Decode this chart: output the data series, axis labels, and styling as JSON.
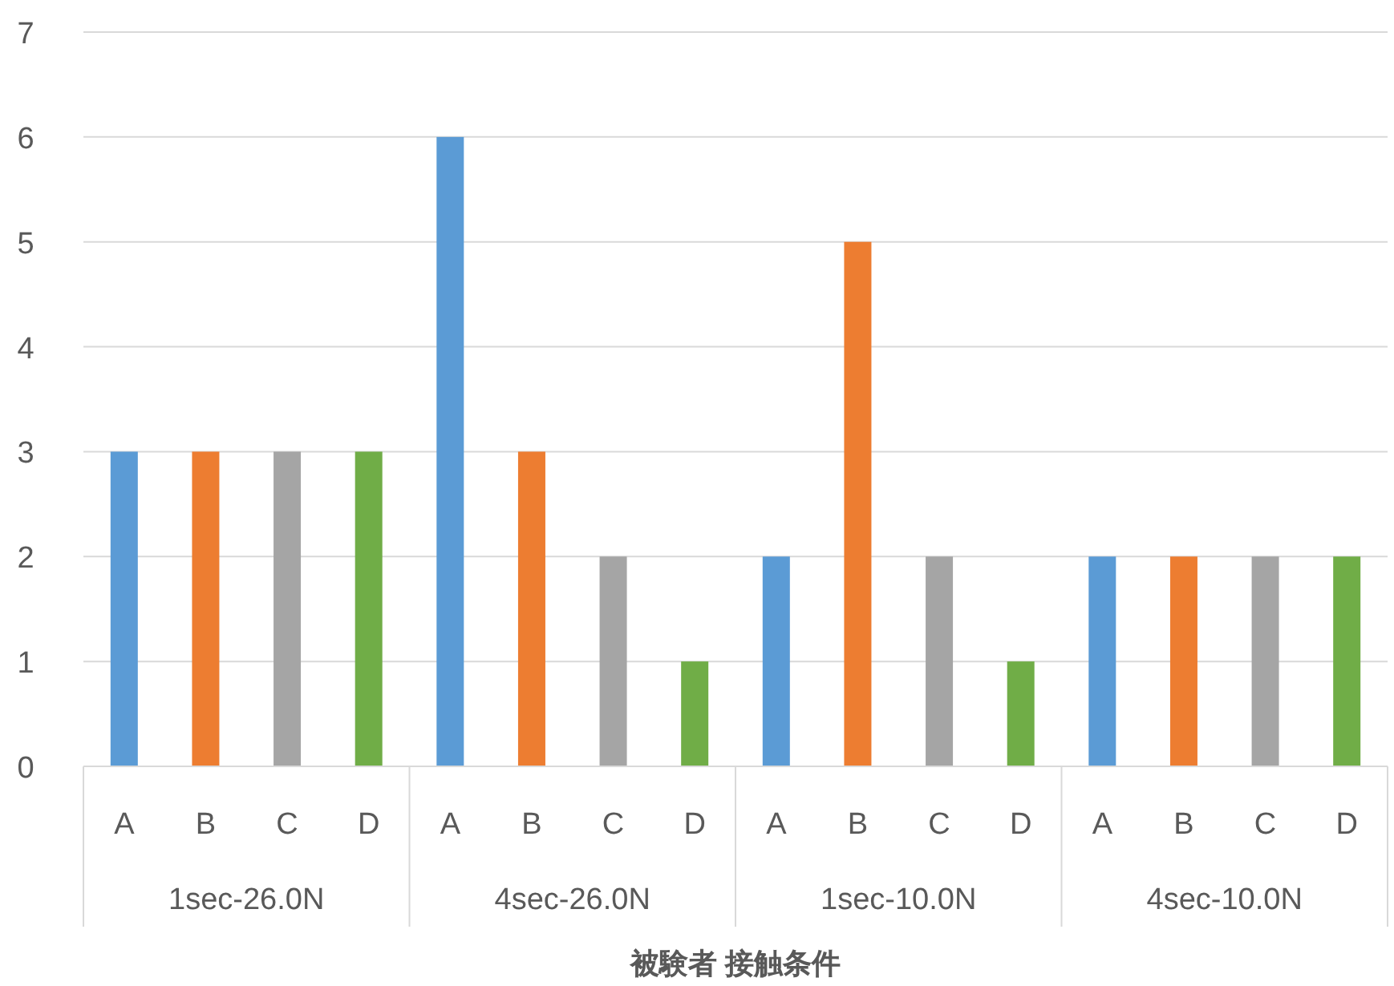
{
  "chart_data": {
    "type": "bar",
    "xlabel": "被験者 接触条件",
    "categories": [
      "A",
      "B",
      "C",
      "D",
      "A",
      "B",
      "C",
      "D",
      "A",
      "B",
      "C",
      "D",
      "A",
      "B",
      "C",
      "D"
    ],
    "values": [
      3,
      3,
      3,
      3,
      6,
      3,
      2,
      1,
      2,
      5,
      2,
      1,
      2,
      2,
      2,
      2
    ],
    "colors": [
      "#5b9bd5",
      "#ed7d31",
      "#a5a5a5",
      "#70ad47",
      "#5b9bd5",
      "#ed7d31",
      "#a5a5a5",
      "#70ad47",
      "#5b9bd5",
      "#ed7d31",
      "#a5a5a5",
      "#70ad47",
      "#5b9bd5",
      "#ed7d31",
      "#a5a5a5",
      "#70ad47"
    ],
    "annotations": [
      "1sec-26.0N",
      "4sec-26.0N",
      "1sec-10.0N",
      "4sec-10.0N"
    ],
    "ylim": [
      0,
      7
    ],
    "yticks": [
      0,
      1,
      2,
      3,
      4,
      5,
      6,
      7
    ],
    "grid": "y"
  }
}
